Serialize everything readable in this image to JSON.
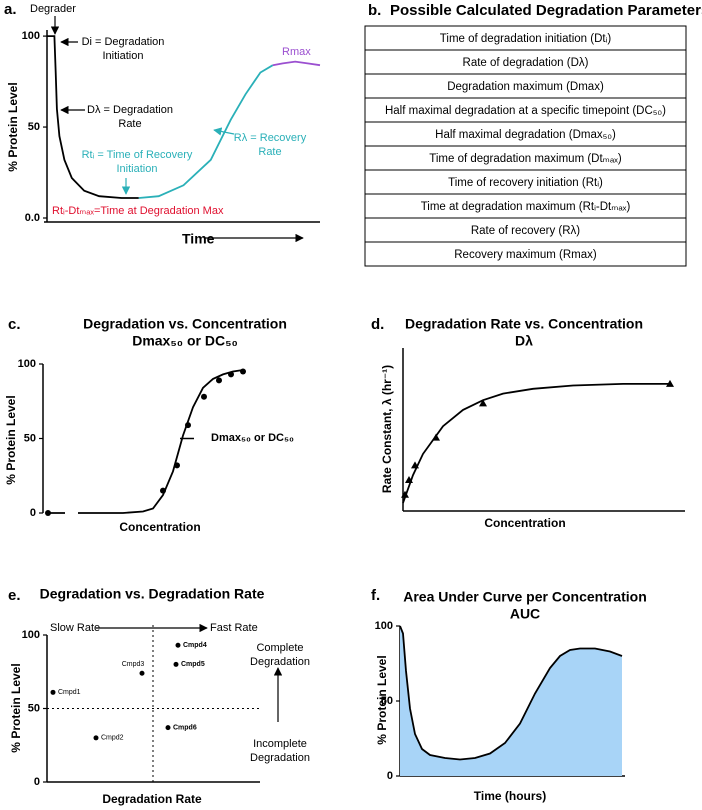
{
  "chart_data": [
    {
      "type": "line",
      "panel_label": "a.",
      "ylabel": "% Protein Level",
      "xlabel": "Time",
      "xlim": [
        0,
        110
      ],
      "ylim": [
        0,
        105
      ],
      "yticks": [
        {
          "value": 0,
          "label": "0.0"
        },
        50,
        100
      ],
      "series": [
        {
          "color": "#000000",
          "x": [
            0,
            3,
            3.5,
            4,
            5,
            7,
            10,
            15,
            21,
            30,
            37
          ],
          "values": [
            100,
            100,
            80,
            60,
            45,
            32,
            22,
            15,
            12,
            11,
            11
          ]
        },
        {
          "color": "#2ab0b8",
          "x": [
            37,
            45,
            55,
            66,
            74,
            80,
            86,
            91
          ],
          "values": [
            11,
            12,
            18,
            32,
            54,
            68,
            80,
            84
          ]
        },
        {
          "color": "#9b4fd0",
          "x": [
            91,
            95,
            100,
            105,
            110
          ],
          "values": [
            84,
            85,
            86,
            85,
            84
          ]
        }
      ],
      "annotations": [
        {
          "lines": [
            "Degrader"
          ],
          "color": "#000000"
        },
        {
          "lines": [
            "Di = Degradation",
            "Initiation"
          ],
          "color": "#000000"
        },
        {
          "lines": [
            "Dλ = Degradation",
            "Rate"
          ],
          "color": "#000000"
        },
        {
          "lines": [
            "Rtᵢ = Time of Recovery",
            "Initiation"
          ],
          "color": "#2ab0b8"
        },
        {
          "lines": [
            "Rλ = Recovery",
            "Rate"
          ],
          "color": "#2ab0b8"
        },
        {
          "lines": [
            "Rmax"
          ],
          "color": "#9b4fd0"
        },
        {
          "lines": [
            "Rtᵢ-Dtₘₐₓ=Time at Degradation Max"
          ],
          "color": "#e0102f"
        }
      ]
    },
    {
      "type": "scatter",
      "panel_label": "c.",
      "title": "Degradation vs. Concentration",
      "subtitle": "Dmax₅₀ or DC₅₀",
      "ylabel": "% Protein Level",
      "xlabel": "Concentration",
      "xlim": [
        0,
        230
      ],
      "ylim": [
        0,
        100
      ],
      "yticks": [
        0,
        50,
        100
      ],
      "dmax50": 50,
      "series": [
        {
          "marker": "circle",
          "color": "#000000",
          "x": [
            5,
            120,
            134,
            145,
            161,
            176,
            188,
            200
          ],
          "values": [
            0,
            15,
            32,
            59,
            78,
            89,
            93,
            95
          ]
        },
        {
          "marker": "none",
          "color": "#000000",
          "x": [
            5,
            22,
            30,
            35,
            80,
            100,
            110,
            120,
            130,
            140,
            150,
            160,
            170,
            180,
            190,
            200
          ],
          "values": [
            0,
            0,
            null,
            0,
            0,
            1,
            3,
            12,
            28,
            52,
            71,
            84,
            90,
            93,
            95,
            96
          ]
        }
      ],
      "annotations": [
        {
          "lines": [
            "Dmax₅₀ or DC₅₀"
          ],
          "color": "#000000"
        }
      ]
    },
    {
      "type": "scatter",
      "panel_label": "d.",
      "title": "Degradation Rate vs. Concentration",
      "subtitle": "Dλ",
      "ylabel": "Rate Constant, λ (hr⁻¹)",
      "xlabel": "Concentration",
      "xlim": [
        0,
        270
      ],
      "ylim": [
        0,
        100
      ],
      "series": [
        {
          "marker": "triangle",
          "color": "#000000",
          "x": [
            2,
            6,
            12,
            33,
            80,
            267
          ],
          "values": [
            10,
            19,
            28,
            45,
            66,
            78
          ]
        },
        {
          "marker": "none",
          "color": "#000000",
          "x": [
            0,
            10,
            20,
            40,
            60,
            80,
            100,
            130,
            170,
            220,
            267
          ],
          "values": [
            5,
            22,
            35,
            52,
            62,
            68,
            72,
            75,
            77,
            78,
            78
          ]
        }
      ]
    },
    {
      "type": "scatter",
      "panel_label": "e.",
      "title": "Degradation vs. Degradation Rate",
      "ylabel": "% Protein Level",
      "xlabel": "Degradation Rate",
      "xlim": [
        0,
        213
      ],
      "ylim": [
        0,
        100
      ],
      "yticks": [
        0,
        50,
        100
      ],
      "guides": {
        "x": 106,
        "y": 50
      },
      "series": [
        {
          "marker": "circle",
          "color": "#000000",
          "x": [
            6,
            49,
            95,
            131,
            129,
            121
          ],
          "values": [
            61,
            30,
            74,
            93,
            80,
            37
          ],
          "labels": [
            "Cmpd1",
            "Cmpd2",
            "Cmpd3",
            "Cmpd4",
            "Cmpd5",
            "Cmpd6"
          ],
          "bold": [
            false,
            false,
            false,
            true,
            true,
            true
          ]
        }
      ],
      "annotations": [
        {
          "lines": [
            "Slow Rate"
          ],
          "color": "#000000"
        },
        {
          "lines": [
            "Fast Rate"
          ],
          "color": "#000000"
        },
        {
          "lines": [
            "Complete",
            "Degradation"
          ],
          "color": "#000000"
        },
        {
          "lines": [
            "Incomplete",
            "Degradation"
          ],
          "color": "#000000"
        }
      ]
    },
    {
      "type": "area",
      "panel_label": "f.",
      "title": "Area Under Curve per Concentration",
      "subtitle": "AUC",
      "ylabel": "% Protein Level",
      "xlabel": "Time (hours)",
      "xlim": [
        0,
        225
      ],
      "ylim": [
        0,
        100
      ],
      "yticks": [
        0,
        50,
        100
      ],
      "series": [
        {
          "color": "#a8d4f7",
          "x": [
            0,
            3,
            6,
            10,
            15,
            22,
            30,
            45,
            60,
            75,
            90,
            105,
            120,
            135,
            150,
            160,
            170,
            180,
            195,
            210,
            222
          ],
          "values": [
            100,
            95,
            70,
            45,
            28,
            18,
            14,
            12,
            11,
            12,
            15,
            22,
            35,
            55,
            72,
            80,
            84,
            85,
            85,
            83,
            80
          ]
        }
      ]
    }
  ],
  "table": {
    "panel_label": "b.",
    "title": "Possible Calculated Degradation Parameters",
    "rows": [
      "Time of degradation initiation (Dtᵢ)",
      "Rate of degradation (Dλ)",
      "Degradation maximum (Dmax)",
      "Half maximal degradation at a specific timepoint (DC₅₀)",
      "Half maximal degradation (Dmax₅₀)",
      "Time of degradation maximum (Dtₘₐₓ)",
      "Time of recovery initiation (Rtᵢ)",
      "Time at degradation maximum (Rtᵢ-Dtₘₐₓ)",
      "Rate of recovery (Rλ)",
      "Recovery maximum (Rmax)"
    ]
  }
}
